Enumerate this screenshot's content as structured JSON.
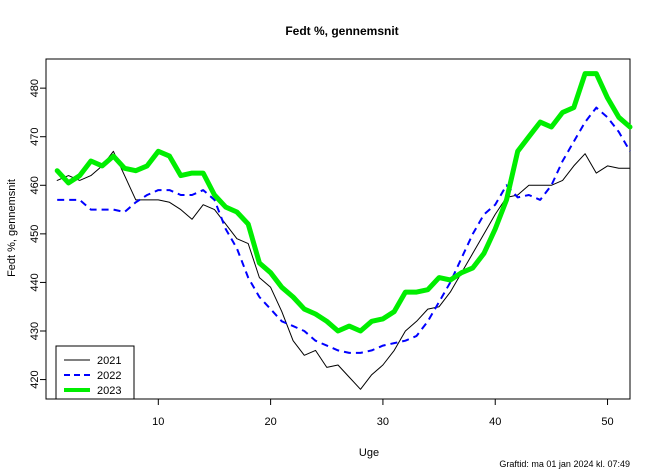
{
  "chart_data": {
    "type": "line",
    "title": "Fedt %, gennemsnit",
    "xlabel": "Uge",
    "ylabel": "Fedt %, gennemsnit",
    "xlim": [
      0,
      52
    ],
    "ylim": [
      416,
      486
    ],
    "x_ticks": [
      10,
      20,
      30,
      40,
      50
    ],
    "y_ticks": [
      420,
      430,
      440,
      450,
      460,
      470,
      480
    ],
    "grid": false,
    "legend_position": "bottom-left",
    "series": [
      {
        "name": "2021",
        "color": "#000000",
        "style": "solid",
        "width": 1,
        "x": [
          1,
          2,
          3,
          4,
          5,
          6,
          7,
          8,
          9,
          10,
          11,
          12,
          13,
          14,
          15,
          16,
          17,
          18,
          19,
          20,
          21,
          22,
          23,
          24,
          25,
          26,
          27,
          28,
          29,
          30,
          31,
          32,
          33,
          34,
          35,
          36,
          37,
          38,
          39,
          40,
          41,
          42,
          43,
          44,
          45,
          46,
          47,
          48,
          49,
          50,
          51,
          52
        ],
        "values": [
          461,
          462,
          461,
          462,
          464,
          467,
          462,
          457,
          457,
          457,
          456.5,
          455,
          453,
          456,
          455,
          452,
          449,
          448,
          441,
          439,
          434,
          428,
          425,
          426,
          422.5,
          423,
          420.5,
          418,
          421,
          423,
          426,
          430,
          432,
          434.5,
          435,
          438,
          442,
          446,
          450,
          454,
          457.5,
          458,
          460,
          460,
          460,
          461,
          464,
          466.5,
          462.5,
          464,
          463.5,
          463.5
        ]
      },
      {
        "name": "2022",
        "color": "#0000ff",
        "style": "dashed",
        "width": 2,
        "x": [
          1,
          2,
          3,
          4,
          5,
          6,
          7,
          8,
          9,
          10,
          11,
          12,
          13,
          14,
          15,
          16,
          17,
          18,
          19,
          20,
          21,
          22,
          23,
          24,
          25,
          26,
          27,
          28,
          29,
          30,
          31,
          32,
          33,
          34,
          35,
          36,
          37,
          38,
          39,
          40,
          41,
          42,
          43,
          44,
          45,
          46,
          47,
          48,
          49,
          50,
          51,
          52
        ],
        "values": [
          457,
          457,
          457,
          455,
          455,
          455,
          454.5,
          456.5,
          458,
          459,
          459,
          458,
          458,
          459,
          457,
          451,
          447,
          441,
          437,
          434.5,
          432,
          431,
          430,
          428,
          427,
          426,
          425.5,
          425.5,
          426,
          427,
          427.5,
          428,
          429,
          432,
          436,
          440,
          445,
          450,
          454,
          456,
          460,
          457.5,
          458,
          457,
          460,
          465,
          469,
          473,
          476,
          474,
          471,
          467
        ]
      },
      {
        "name": "2023",
        "color": "#00ee00",
        "style": "solid",
        "width": 5,
        "x": [
          1,
          2,
          3,
          4,
          5,
          6,
          7,
          8,
          9,
          10,
          11,
          12,
          13,
          14,
          15,
          16,
          17,
          18,
          19,
          20,
          21,
          22,
          23,
          24,
          25,
          26,
          27,
          28,
          29,
          30,
          31,
          32,
          33,
          34,
          35,
          36,
          37,
          38,
          39,
          40,
          41,
          42,
          43,
          44,
          45,
          46,
          47,
          48,
          49,
          50,
          51,
          52
        ],
        "values": [
          463,
          460.5,
          462,
          465,
          464,
          466,
          463.5,
          463,
          464,
          467,
          466,
          462,
          462.5,
          462.5,
          458,
          455.5,
          454.5,
          452,
          444,
          442,
          439,
          437,
          434.5,
          433.5,
          432,
          430,
          431,
          430,
          432,
          432.5,
          434,
          438,
          438,
          438.5,
          441,
          440.5,
          442,
          443,
          446,
          451,
          457,
          467,
          470,
          473,
          472,
          475,
          476,
          483,
          483,
          478,
          474,
          472
        ]
      }
    ]
  },
  "footer": "Graftid: ma 01 jan 2024 kl. 07:49"
}
